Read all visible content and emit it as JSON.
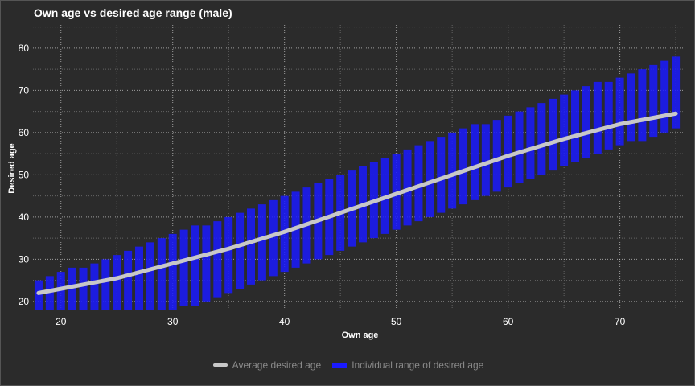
{
  "chart_data": {
    "type": "line",
    "title": "Own age vs desired age range (male)",
    "xlabel": "Own age",
    "ylabel": "Desired age",
    "xlim": [
      17.5,
      76
    ],
    "ylim": [
      17.5,
      85.5
    ],
    "xticks": [
      20,
      30,
      40,
      50,
      60,
      70
    ],
    "yticks": [
      20,
      30,
      40,
      50,
      60,
      70,
      80
    ],
    "grid": true,
    "legend_position": "bottom",
    "colors": {
      "background": "#2b2b2b",
      "average_line": "#c8c8c8",
      "range_bars": "#1a1aff",
      "grid": "#d0d0d0"
    },
    "series": [
      {
        "name": "Average desired age",
        "kind": "line",
        "x": [
          18,
          20,
          25,
          30,
          35,
          40,
          45,
          50,
          55,
          60,
          65,
          70,
          75
        ],
        "y": [
          22,
          23,
          25.5,
          29,
          32.5,
          36.5,
          41,
          45.5,
          50,
          54.5,
          58.5,
          62,
          64.5
        ]
      },
      {
        "name": "Individual range of desired age",
        "kind": "range",
        "x": [
          18,
          19,
          20,
          21,
          22,
          23,
          24,
          25,
          26,
          27,
          28,
          29,
          30,
          31,
          32,
          33,
          34,
          35,
          36,
          37,
          38,
          39,
          40,
          41,
          42,
          43,
          44,
          45,
          46,
          47,
          48,
          49,
          50,
          51,
          52,
          53,
          54,
          55,
          56,
          57,
          58,
          59,
          60,
          61,
          62,
          63,
          64,
          65,
          66,
          67,
          68,
          69,
          70,
          71,
          72,
          73,
          74,
          75
        ],
        "low": [
          18,
          18,
          18,
          18,
          18,
          18,
          18,
          18,
          18,
          18,
          18,
          18,
          18,
          19,
          19,
          20,
          21,
          22,
          23,
          24,
          25,
          26,
          27,
          28,
          29,
          30,
          31,
          32,
          33,
          34,
          35,
          36,
          37,
          38,
          39,
          40,
          41,
          42,
          43,
          44,
          45,
          46,
          47,
          48,
          49,
          50,
          51,
          52,
          53,
          54,
          55,
          56,
          57,
          58,
          58,
          59,
          60,
          61
        ],
        "high": [
          25,
          26,
          27,
          28,
          28,
          29,
          30,
          31,
          32,
          33,
          34,
          35,
          36,
          37,
          38,
          38,
          39,
          40,
          41,
          42,
          43,
          44,
          45,
          46,
          47,
          48,
          49,
          50,
          51,
          52,
          53,
          54,
          55,
          56,
          57,
          58,
          59,
          60,
          61,
          62,
          62,
          63,
          64,
          65,
          66,
          67,
          68,
          69,
          70,
          71,
          72,
          72,
          73,
          74,
          75,
          76,
          77,
          78
        ]
      }
    ]
  }
}
